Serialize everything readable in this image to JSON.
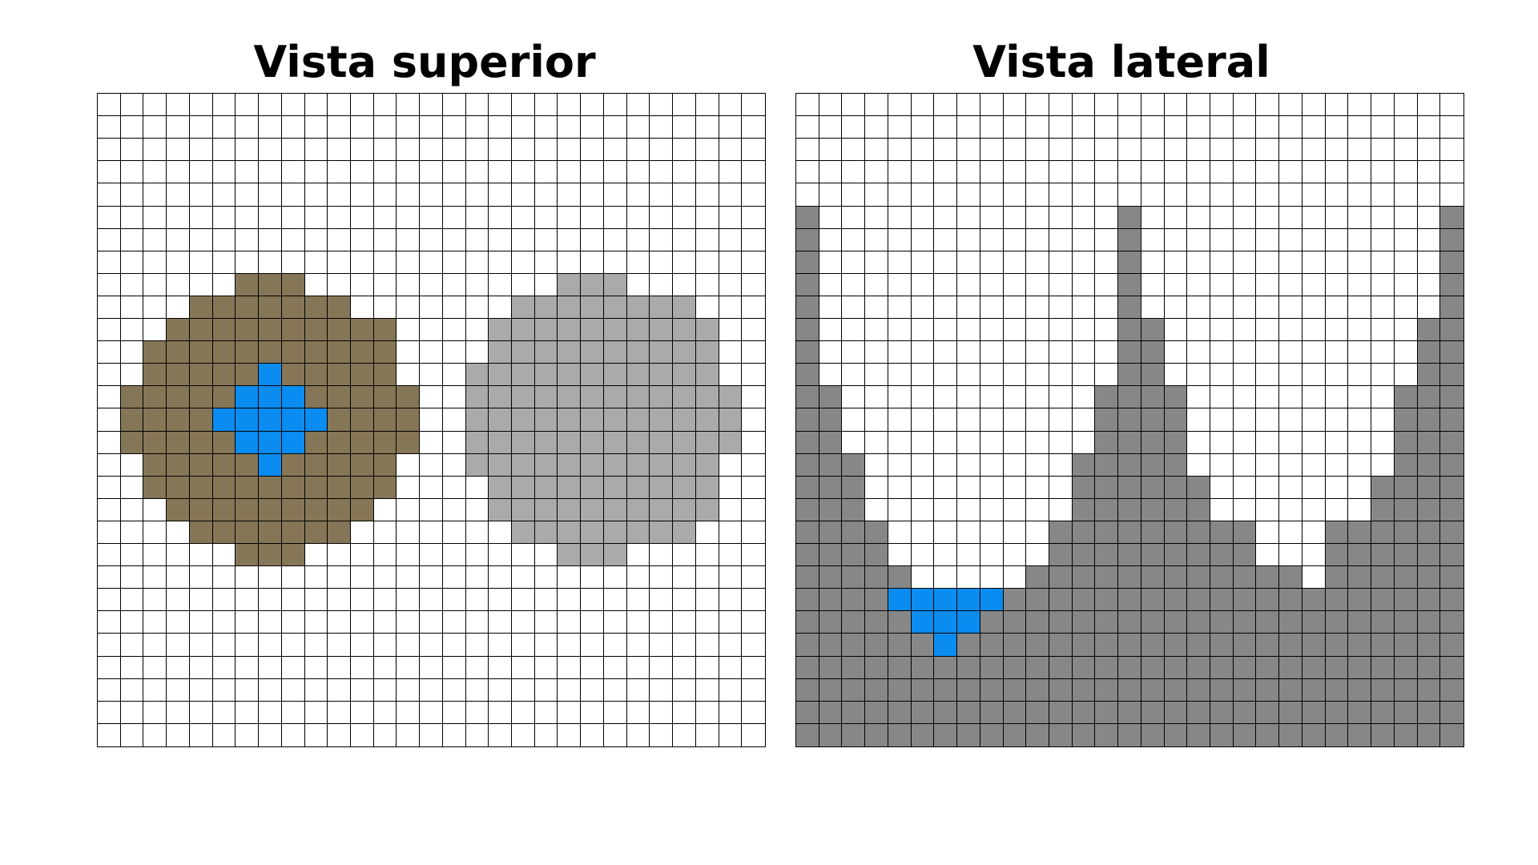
{
  "panels": {
    "top": {
      "title": "Vista superior",
      "rows": [
        ".............................",
        ".............................",
        ".............................",
        ".............................",
        ".............................",
        ".............................",
        ".............................",
        ".............................",
        "......BBB...........GGG......",
        "....BBBBBBB.......GGGGGGGG...",
        "...BBBBBBBBBB....GGGGGGGGGG..",
        "..BBBBBBBBBBB....GGGGGGGGGG..",
        "..BBBBBWBBBBB...GGGGGGGGGGG..",
        ".BBBBBWWWBBBBB..GGGGGGGGGGGG.",
        ".BBBBWWWWWBBBB..GGGGGGGGGGGG.",
        ".BBBBBWWWBBBBB..GGGGGGGGGGGG.",
        "..BBBBBWBBBBB...GGGGGGGGGGG..",
        "..BBBBBBBBBBB....GGGGGGGGGG..",
        "...BBBBBBBBB.....GGGGGGGGGG..",
        "....BBBBBBB.......GGGGGGGG...",
        "......BBB...........GGG......",
        ".............................",
        ".............................",
        ".............................",
        ".............................",
        ".............................",
        ".............................",
        ".............................",
        "............................."
      ]
    },
    "side": {
      "title": "Vista lateral",
      "rows": [
        ".............................",
        ".............................",
        ".............................",
        ".............................",
        ".............................",
        "D.............D.............D",
        "D.............D.............D",
        "D.............D.............D",
        "D.............D.............D",
        "D.............D.............D",
        "D.............DD...........DD",
        "D.............DD...........DD",
        "D.............DD...........DD",
        "DD...........DDDD.........DDD",
        "DD...........DDDD.........DDD",
        "DD...........DDDD.........DDD",
        "DDD.........DDDDD.........DDD",
        "DDD.........DDDDDD.......DDDD",
        "DDD.........DDDDDD.......DDDD",
        "DDDD.......DDDDDDDDD...DDDDDD",
        "DDDD.......DDDDDDDDD...DDDDDD",
        "DDDDD.....DDDDDDDDDDDD.DDDDDD",
        "DDDDWWWWWDDDDDDDDDDDDDDDDDDDD",
        "DDDDDWWWDDDDDDDDDDDDDDDDDDDDD",
        "DDDDDDWDDDDDDDDDDDDDDDDDDDDDD",
        "DDDDDDDDDDDDDDDDDDDDDDDDDDDDD",
        "DDDDDDDDDDDDDDDDDDDDDDDDDDDDD",
        "DDDDDDDDDDDDDDDDDDDDDDDDDDDDD",
        "DDDDDDDDDDDDDDDDDDDDDDDDDDDDD"
      ]
    }
  },
  "palette": {
    ".": "#ffffff",
    "B": "#857657",
    "G": "#aaaaaa",
    "W": "#0a8cf0",
    "D": "#878787"
  }
}
